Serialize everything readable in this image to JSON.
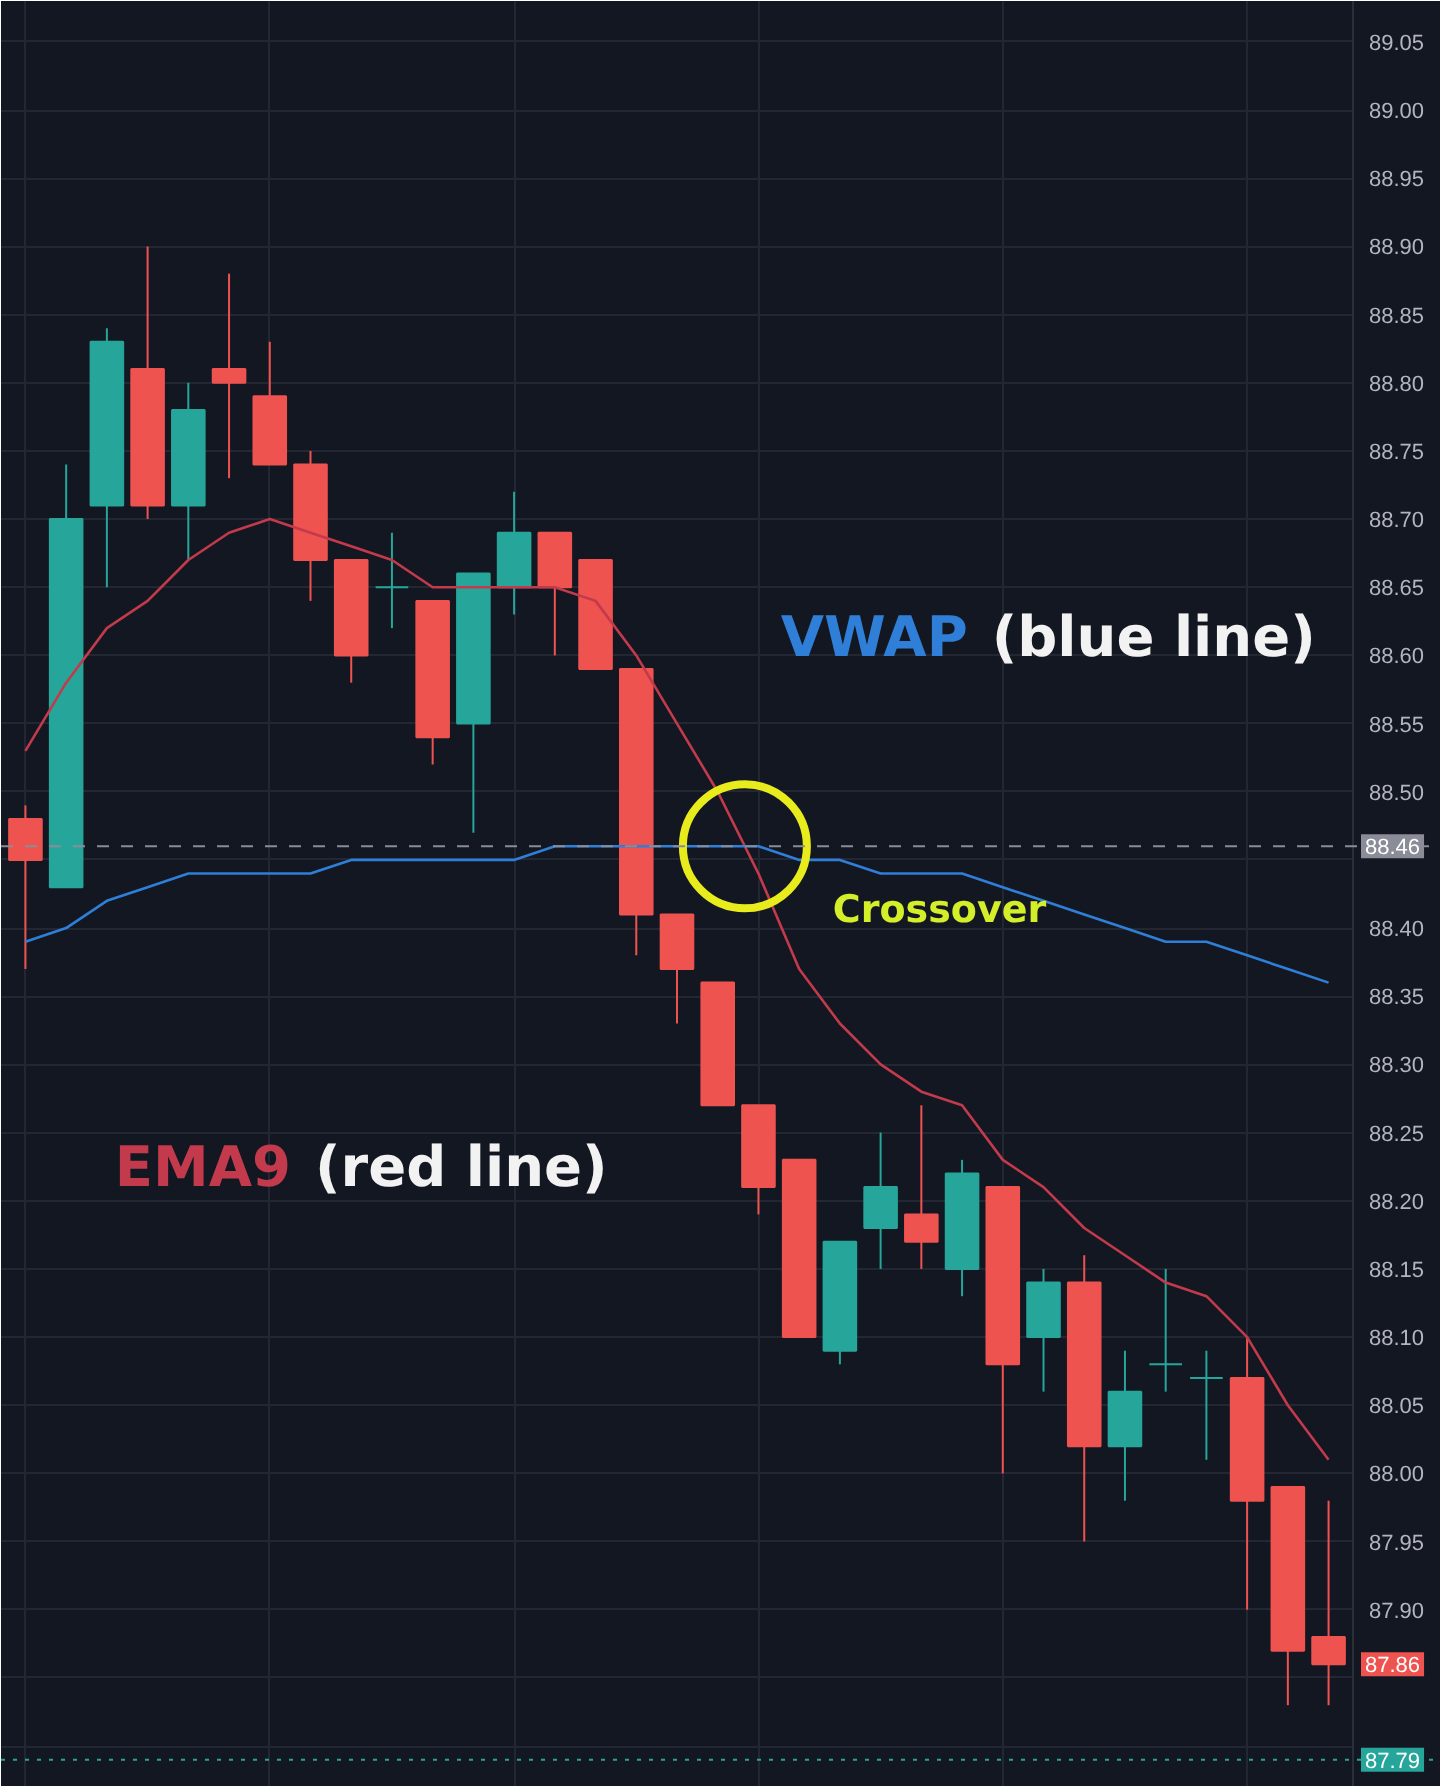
{
  "chart_data": {
    "type": "candlestick",
    "categories": [
      null,
      null,
      null,
      null,
      null,
      null,
      null,
      null,
      null,
      null,
      null,
      null,
      null,
      null,
      null,
      null,
      null,
      null,
      null,
      null,
      null,
      null,
      null,
      null,
      null,
      null,
      null,
      null,
      null,
      null,
      null,
      null,
      null
    ],
    "ohlc": [
      [
        88.48,
        88.49,
        88.37,
        88.45
      ],
      [
        88.43,
        88.74,
        88.43,
        88.7
      ],
      [
        88.71,
        88.84,
        88.65,
        88.83
      ],
      [
        88.81,
        88.9,
        88.7,
        88.71
      ],
      [
        88.71,
        88.8,
        88.67,
        88.78
      ],
      [
        88.81,
        88.88,
        88.73,
        88.8
      ],
      [
        88.79,
        88.83,
        88.74,
        88.74
      ],
      [
        88.74,
        88.75,
        88.64,
        88.67
      ],
      [
        88.67,
        88.67,
        88.58,
        88.6
      ],
      [
        88.65,
        88.69,
        88.62,
        88.65
      ],
      [
        88.64,
        88.64,
        88.52,
        88.54
      ],
      [
        88.55,
        88.66,
        88.47,
        88.66
      ],
      [
        88.65,
        88.72,
        88.63,
        88.69
      ],
      [
        88.69,
        88.69,
        88.6,
        88.65
      ],
      [
        88.67,
        88.67,
        88.59,
        88.59
      ],
      [
        88.59,
        88.59,
        88.38,
        88.41
      ],
      [
        88.41,
        88.41,
        88.33,
        88.37
      ],
      [
        88.36,
        88.36,
        88.27,
        88.27
      ],
      [
        88.27,
        88.27,
        88.19,
        88.21
      ],
      [
        88.23,
        88.23,
        88.1,
        88.1
      ],
      [
        88.09,
        88.17,
        88.08,
        88.17
      ],
      [
        88.18,
        88.25,
        88.15,
        88.21
      ],
      [
        88.19,
        88.27,
        88.15,
        88.17
      ],
      [
        88.15,
        88.23,
        88.13,
        88.22
      ],
      [
        88.21,
        88.21,
        88.0,
        88.08
      ],
      [
        88.1,
        88.15,
        88.06,
        88.14
      ],
      [
        88.14,
        88.16,
        87.95,
        88.02
      ],
      [
        88.02,
        88.09,
        87.98,
        88.06
      ],
      [
        88.08,
        88.15,
        88.06,
        88.08
      ],
      [
        88.07,
        88.09,
        88.01,
        88.07
      ],
      [
        88.07,
        88.1,
        87.9,
        87.98
      ],
      [
        87.99,
        87.99,
        87.83,
        87.87
      ],
      [
        87.88,
        87.98,
        87.83,
        87.86
      ]
    ],
    "colors": [
      "#ef5350",
      "#26a69a",
      "#26a69a",
      "#ef5350",
      "#26a69a",
      "#ef5350",
      "#ef5350",
      "#ef5350",
      "#ef5350",
      "#26a69a",
      "#ef5350",
      "#26a69a",
      "#26a69a",
      "#ef5350",
      "#ef5350",
      "#ef5350",
      "#ef5350",
      "#ef5350",
      "#ef5350",
      "#ef5350",
      "#26a69a",
      "#26a69a",
      "#ef5350",
      "#26a69a",
      "#ef5350",
      "#26a69a",
      "#ef5350",
      "#26a69a",
      "#26a69a",
      "#26a69a",
      "#ef5350",
      "#ef5350",
      "#ef5350"
    ],
    "series": [
      {
        "name": "EMA9",
        "type": "line",
        "color": "#c23a4c",
        "values": [
          88.53,
          88.58,
          88.62,
          88.64,
          88.67,
          88.69,
          88.7,
          88.69,
          88.68,
          88.67,
          88.65,
          88.65,
          88.65,
          88.65,
          88.64,
          88.6,
          88.55,
          88.5,
          88.44,
          88.37,
          88.33,
          88.3,
          88.28,
          88.27,
          88.23,
          88.21,
          88.18,
          88.16,
          88.14,
          88.13,
          88.1,
          88.05,
          88.01
        ]
      },
      {
        "name": "VWAP",
        "type": "line",
        "color": "#2f7fd8",
        "values": [
          88.39,
          88.4,
          88.42,
          88.43,
          88.44,
          88.44,
          88.44,
          88.44,
          88.45,
          88.45,
          88.45,
          88.45,
          88.45,
          88.46,
          88.46,
          88.46,
          88.46,
          88.46,
          88.46,
          88.45,
          88.45,
          88.44,
          88.44,
          88.44,
          88.43,
          88.42,
          88.41,
          88.4,
          88.39,
          88.39,
          88.38,
          88.37,
          88.36
        ]
      }
    ],
    "ylim": [
      87.77,
      89.08
    ],
    "yticks": [
      {
        "value": 87.8,
        "label": null
      },
      {
        "value": 87.85,
        "label": null
      },
      {
        "value": 87.9,
        "label": "87.90"
      },
      87.95,
      {
        "value": 88.0,
        "label": "88.00"
      },
      88.05,
      {
        "value": 88.1,
        "label": "88.10"
      },
      88.15,
      {
        "value": 88.2,
        "label": "88.20"
      },
      88.25,
      {
        "value": 88.3,
        "label": "88.30"
      },
      88.35,
      {
        "value": 88.4,
        "label": "88.40"
      },
      {
        "value": 88.45,
        "label": null
      },
      {
        "value": 88.5,
        "label": "88.50"
      },
      88.55,
      {
        "value": 88.6,
        "label": "88.60"
      },
      88.65,
      {
        "value": 88.7,
        "label": "88.70"
      },
      88.75,
      {
        "value": 88.8,
        "label": "88.80"
      },
      88.85,
      {
        "value": 88.9,
        "label": "88.90"
      },
      88.95,
      {
        "value": 89.0,
        "label": "89.00"
      },
      89.05
    ],
    "grid": true,
    "legend": false,
    "ref_lines": [
      {
        "axis": "y",
        "value": 88.46,
        "label": "88.46",
        "color": "#8a8d97",
        "line_style": "dashed"
      },
      {
        "axis": "y",
        "value": 87.79,
        "label": "87.79",
        "color": "#26a69a",
        "line_style": "dotted"
      }
    ],
    "annotations": [
      {
        "text": "Crossover",
        "y": 88.46
      },
      "(red line)",
      "(blue line)",
      "87.86"
    ]
  }
}
